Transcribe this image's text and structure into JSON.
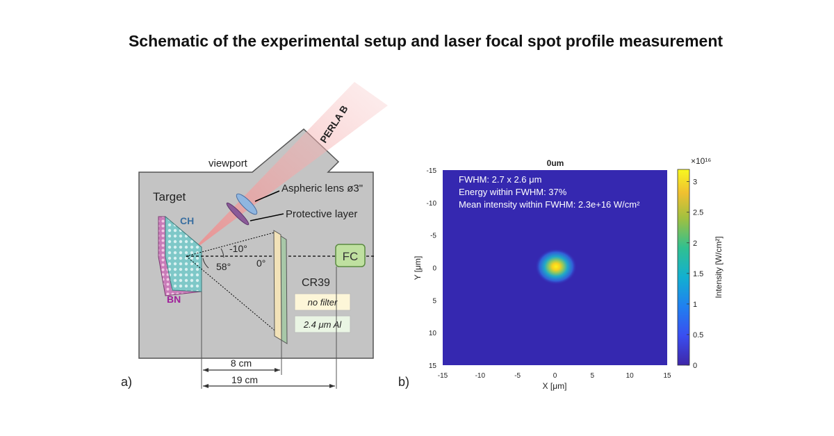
{
  "title": "Schematic of the experimental setup and laser focal spot profile measurement",
  "panel_a": {
    "label": "a)",
    "viewport": "viewport",
    "laser": "PERLA B",
    "target": "Target",
    "ch": "CH",
    "bn": "BN",
    "lens": "Aspheric lens ø3\"",
    "protective": "Protective layer",
    "angle_neg10": "-10°",
    "angle_0": "0°",
    "angle_58": "58°",
    "fc": "FC",
    "cr39": "CR39",
    "filter1": "no filter",
    "filter2": "2.4 μm Al",
    "dist1": "8 cm",
    "dist2": "19 cm",
    "colors": {
      "chamber": "#c4c4c4",
      "beam": "#f0a0a0",
      "lens": "#8fb6e0",
      "protective": "#8a5a98",
      "fc_fill": "#bfe0a0",
      "ch_fill": "#7ec8c8",
      "bn_fill": "#c97bb8"
    }
  },
  "panel_b": {
    "label": "b)",
    "plot_title": "0um",
    "ann1": "FWHM: 2.7 x 2.6 μm",
    "ann2": "Energy within FWHM: 37%",
    "ann3": "Mean intensity within FWHM: 2.3e+16 W/cm²",
    "xlabel": "X [μm]",
    "ylabel": "Y [μm]",
    "colorbar_label": "Intensity [W/cm²]",
    "colorbar_scale": "×10¹⁶",
    "xticks": [
      "-15",
      "-10",
      "-5",
      "0",
      "5",
      "10",
      "15"
    ],
    "yticks": [
      "-15",
      "-10",
      "-5",
      "0",
      "5",
      "10",
      "15"
    ],
    "cbar_ticks": [
      "0",
      "0.5",
      "1",
      "1.5",
      "2",
      "2.5",
      "3"
    ],
    "colors": {
      "background": "#3528b0",
      "spot_core": "#f8e020",
      "spot_mid": "#30c0a0"
    }
  },
  "chart_data": {
    "type": "heatmap",
    "title": "0um",
    "xlabel": "X [μm]",
    "ylabel": "Y [μm]",
    "xlim": [
      -15,
      15
    ],
    "ylim": [
      15,
      -15
    ],
    "colorbar_range": [
      0,
      3.2
    ],
    "colorbar_unit": "×10^16 W/cm²",
    "colormap": "parula",
    "peak_position": [
      0,
      0
    ],
    "fwhm_um": [
      2.7,
      2.6
    ],
    "energy_within_fwhm_pct": 37,
    "mean_intensity_within_fwhm": "2.3e+16 W/cm²"
  }
}
